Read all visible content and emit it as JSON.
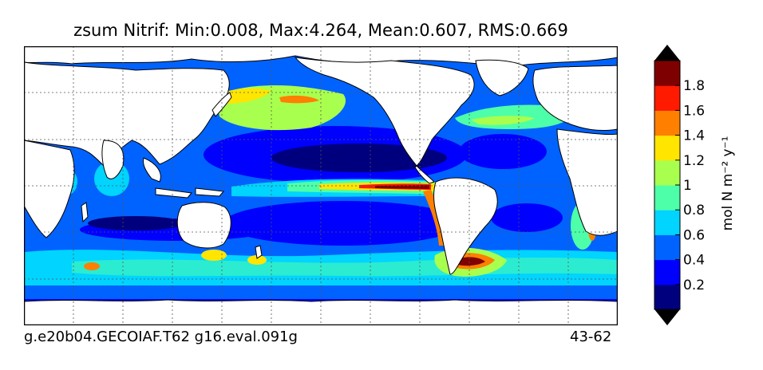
{
  "chart_data": {
    "type": "heatmap",
    "title": "zsum Nitrif: Min:0.008, Max:4.264, Mean:0.607, RMS:0.669",
    "variable": "zsum Nitrif",
    "stats": {
      "min": 0.008,
      "max": 4.264,
      "mean": 0.607,
      "rms": 0.669
    },
    "colorbar": {
      "label": "mol N m⁻² y⁻¹",
      "ticks": [
        "0.2",
        "0.4",
        "0.6",
        "0.8",
        "1",
        "1.2",
        "1.4",
        "1.6",
        "1.8"
      ],
      "levels": [
        0,
        0.2,
        0.4,
        0.6,
        0.8,
        1.0,
        1.2,
        1.4,
        1.6,
        1.8,
        2.0
      ],
      "extend": "both",
      "colors": [
        "#00007f",
        "#0000ff",
        "#0063ff",
        "#00d4ff",
        "#4effa9",
        "#a9ff4e",
        "#ffe500",
        "#ff7f00",
        "#ff1a00",
        "#7f0000"
      ],
      "under_color": "#000000",
      "over_color": "#000000"
    },
    "grid": true,
    "grid_style": "dotted",
    "land_color": "#ffffff",
    "coastline_color": "#000000"
  },
  "footer": {
    "left": "g.e20b04.GECOIAF.T62 g16.eval.091g",
    "right": "43-62"
  }
}
